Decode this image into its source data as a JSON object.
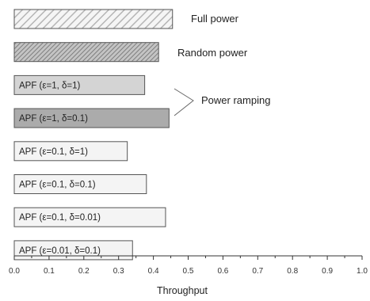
{
  "chart_data": {
    "type": "bar",
    "orientation": "horizontal",
    "categories": [
      "Full power",
      "Random power",
      "APF (ε=1, δ=1)",
      "APF (ε=1, δ=0.1)",
      "APF (ε=0.1, δ=1)",
      "APF (ε=0.1, δ=0.1)",
      "APF (ε=0.1, δ=0.01)",
      "APF (ε=0.01, δ=0.1)"
    ],
    "values": [
      0.455,
      0.415,
      0.375,
      0.445,
      0.325,
      0.38,
      0.435,
      0.34
    ],
    "fills": [
      "hatch-light",
      "hatch-dark",
      "#d4d4d4",
      "#ababab",
      "#f4f4f4",
      "#f4f4f4",
      "#f4f4f4",
      "#f4f4f4"
    ],
    "xlabel": "Throughput",
    "ylabel": "",
    "xlim": [
      0.0,
      1.0
    ],
    "xticks": [
      "0.0",
      "0.1",
      "0.2",
      "0.3",
      "0.4",
      "0.5",
      "0.6",
      "0.7",
      "0.8",
      "0.9",
      "1.0"
    ],
    "annotations": {
      "full_power": "Full power",
      "random_power": "Random power",
      "power_ramping": "Power ramping"
    },
    "grid": false,
    "legend": "none"
  },
  "colors": {
    "bar_outline": "#555555",
    "axis": "#333333",
    "hatch_light": "#b5b5b5",
    "hatch_dark": "#8a8a8a"
  }
}
